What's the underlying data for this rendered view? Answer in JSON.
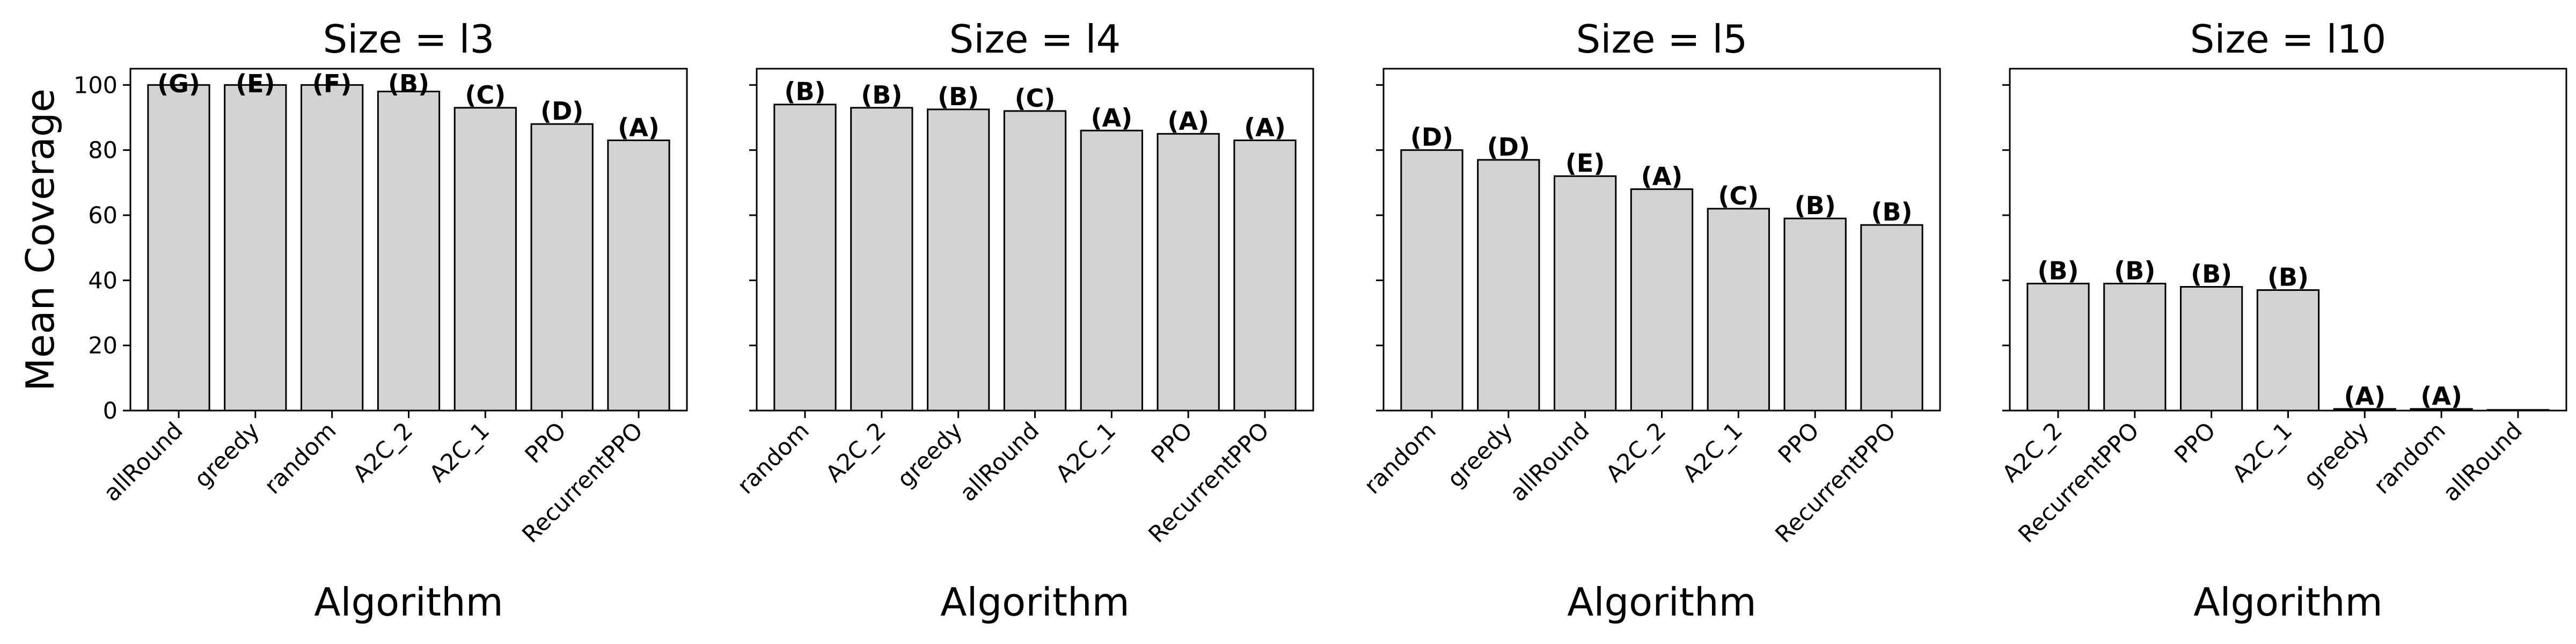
{
  "colors": {
    "bar_fill": "#d3d3d3",
    "bar_edge": "#000000",
    "label_color": "#0000ff",
    "background": "#ffffff"
  },
  "figure": {
    "ylabel": "Mean Coverage",
    "xlabel": "Algorithm"
  },
  "chart_data": [
    {
      "type": "bar",
      "title": "Size = l3",
      "xlabel": "Algorithm",
      "ylabel": "Mean Coverage",
      "ylim": [
        0,
        105
      ],
      "yticks": [
        0,
        20,
        40,
        60,
        80,
        100
      ],
      "grid": false,
      "categories": [
        "allRound",
        "greedy",
        "random",
        "A2C_2",
        "A2C_1",
        "PPO",
        "RecurrentPPO"
      ],
      "values": [
        100,
        100,
        100,
        98,
        93,
        88,
        83
      ],
      "labels": [
        "(G)",
        "(E)",
        "(F)",
        "(B)",
        "(C)",
        "(D)",
        "(A)"
      ]
    },
    {
      "type": "bar",
      "title": "Size = l4",
      "xlabel": "Algorithm",
      "ylim": [
        0,
        105
      ],
      "yticks": [
        0,
        20,
        40,
        60,
        80,
        100
      ],
      "grid": false,
      "categories": [
        "random",
        "A2C_2",
        "greedy",
        "allRound",
        "A2C_1",
        "PPO",
        "RecurrentPPO"
      ],
      "values": [
        94,
        93,
        92.5,
        92,
        86,
        85,
        83
      ],
      "labels": [
        "(B)",
        "(B)",
        "(B)",
        "(C)",
        "(A)",
        "(A)",
        "(A)"
      ]
    },
    {
      "type": "bar",
      "title": "Size = l5",
      "xlabel": "Algorithm",
      "ylim": [
        0,
        105
      ],
      "yticks": [
        0,
        20,
        40,
        60,
        80,
        100
      ],
      "grid": false,
      "categories": [
        "random",
        "greedy",
        "allRound",
        "A2C_2",
        "A2C_1",
        "PPO",
        "RecurrentPPO"
      ],
      "values": [
        80,
        77,
        72,
        68,
        62,
        59,
        57
      ],
      "labels": [
        "(D)",
        "(D)",
        "(E)",
        "(A)",
        "(C)",
        "(B)",
        "(B)"
      ]
    },
    {
      "type": "bar",
      "title": "Size = l10",
      "xlabel": "Algorithm",
      "ylim": [
        0,
        105
      ],
      "yticks": [
        0,
        20,
        40,
        60,
        80,
        100
      ],
      "grid": false,
      "categories": [
        "A2C_2",
        "RecurrentPPO",
        "PPO",
        "A2C_1",
        "greedy",
        "random",
        "allRound"
      ],
      "values": [
        39,
        39,
        38,
        37,
        0.5,
        0.5,
        0.2
      ],
      "labels": [
        "(B)",
        "(B)",
        "(B)",
        "(B)",
        "(A)",
        "(A)",
        ""
      ]
    }
  ]
}
